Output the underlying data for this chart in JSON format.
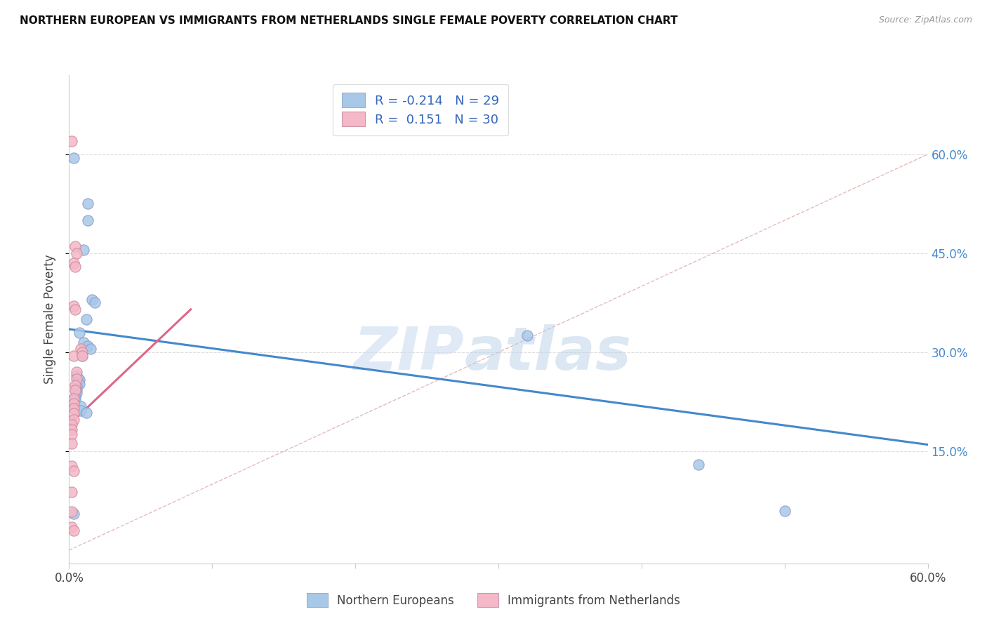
{
  "title": "NORTHERN EUROPEAN VS IMMIGRANTS FROM NETHERLANDS SINGLE FEMALE POVERTY CORRELATION CHART",
  "source": "Source: ZipAtlas.com",
  "ylabel": "Single Female Poverty",
  "yticks": [
    "15.0%",
    "30.0%",
    "45.0%",
    "60.0%"
  ],
  "ytick_vals": [
    0.15,
    0.3,
    0.45,
    0.6
  ],
  "xlim": [
    0.0,
    0.6
  ],
  "ylim": [
    -0.02,
    0.72
  ],
  "legend_r_blue": "-0.214",
  "legend_n_blue": "29",
  "legend_r_pink": "0.151",
  "legend_n_pink": "30",
  "blue_scatter": [
    [
      0.003,
      0.595
    ],
    [
      0.013,
      0.525
    ],
    [
      0.013,
      0.5
    ],
    [
      0.01,
      0.455
    ],
    [
      0.016,
      0.38
    ],
    [
      0.018,
      0.375
    ],
    [
      0.012,
      0.35
    ],
    [
      0.007,
      0.33
    ],
    [
      0.01,
      0.315
    ],
    [
      0.013,
      0.31
    ],
    [
      0.015,
      0.305
    ],
    [
      0.009,
      0.295
    ],
    [
      0.005,
      0.265
    ],
    [
      0.006,
      0.26
    ],
    [
      0.007,
      0.258
    ],
    [
      0.007,
      0.252
    ],
    [
      0.005,
      0.248
    ],
    [
      0.005,
      0.242
    ],
    [
      0.005,
      0.238
    ],
    [
      0.004,
      0.232
    ],
    [
      0.004,
      0.228
    ],
    [
      0.003,
      0.22
    ],
    [
      0.008,
      0.218
    ],
    [
      0.008,
      0.212
    ],
    [
      0.012,
      0.208
    ],
    [
      0.32,
      0.325
    ],
    [
      0.44,
      0.13
    ],
    [
      0.5,
      0.06
    ],
    [
      0.003,
      0.055
    ]
  ],
  "pink_scatter": [
    [
      0.002,
      0.62
    ],
    [
      0.004,
      0.46
    ],
    [
      0.005,
      0.45
    ],
    [
      0.003,
      0.435
    ],
    [
      0.004,
      0.43
    ],
    [
      0.003,
      0.37
    ],
    [
      0.004,
      0.365
    ],
    [
      0.003,
      0.295
    ],
    [
      0.008,
      0.305
    ],
    [
      0.009,
      0.3
    ],
    [
      0.009,
      0.295
    ],
    [
      0.005,
      0.27
    ],
    [
      0.005,
      0.26
    ],
    [
      0.004,
      0.25
    ],
    [
      0.004,
      0.242
    ],
    [
      0.003,
      0.23
    ],
    [
      0.003,
      0.222
    ],
    [
      0.003,
      0.215
    ],
    [
      0.003,
      0.207
    ],
    [
      0.003,
      0.198
    ],
    [
      0.002,
      0.19
    ],
    [
      0.002,
      0.183
    ],
    [
      0.002,
      0.175
    ],
    [
      0.002,
      0.162
    ],
    [
      0.002,
      0.128
    ],
    [
      0.003,
      0.12
    ],
    [
      0.002,
      0.088
    ],
    [
      0.002,
      0.058
    ],
    [
      0.002,
      0.035
    ],
    [
      0.003,
      0.03
    ]
  ],
  "blue_line_x": [
    0.0,
    0.6
  ],
  "blue_line_y": [
    0.335,
    0.16
  ],
  "pink_line_x": [
    0.0,
    0.085
  ],
  "pink_line_y": [
    0.19,
    0.365
  ],
  "grey_line_x": [
    0.0,
    0.6
  ],
  "grey_line_y": [
    0.0,
    0.6
  ],
  "blue_color": "#a8c8e8",
  "pink_color": "#f4b8c8",
  "blue_line_color": "#4488cc",
  "pink_line_color": "#dd6688",
  "grey_line_color": "#ddaaaa",
  "background_color": "#ffffff",
  "watermark_zip": "ZIP",
  "watermark_atlas": "atlas",
  "legend_label_blue": "Northern Europeans",
  "legend_label_pink": "Immigrants from Netherlands"
}
